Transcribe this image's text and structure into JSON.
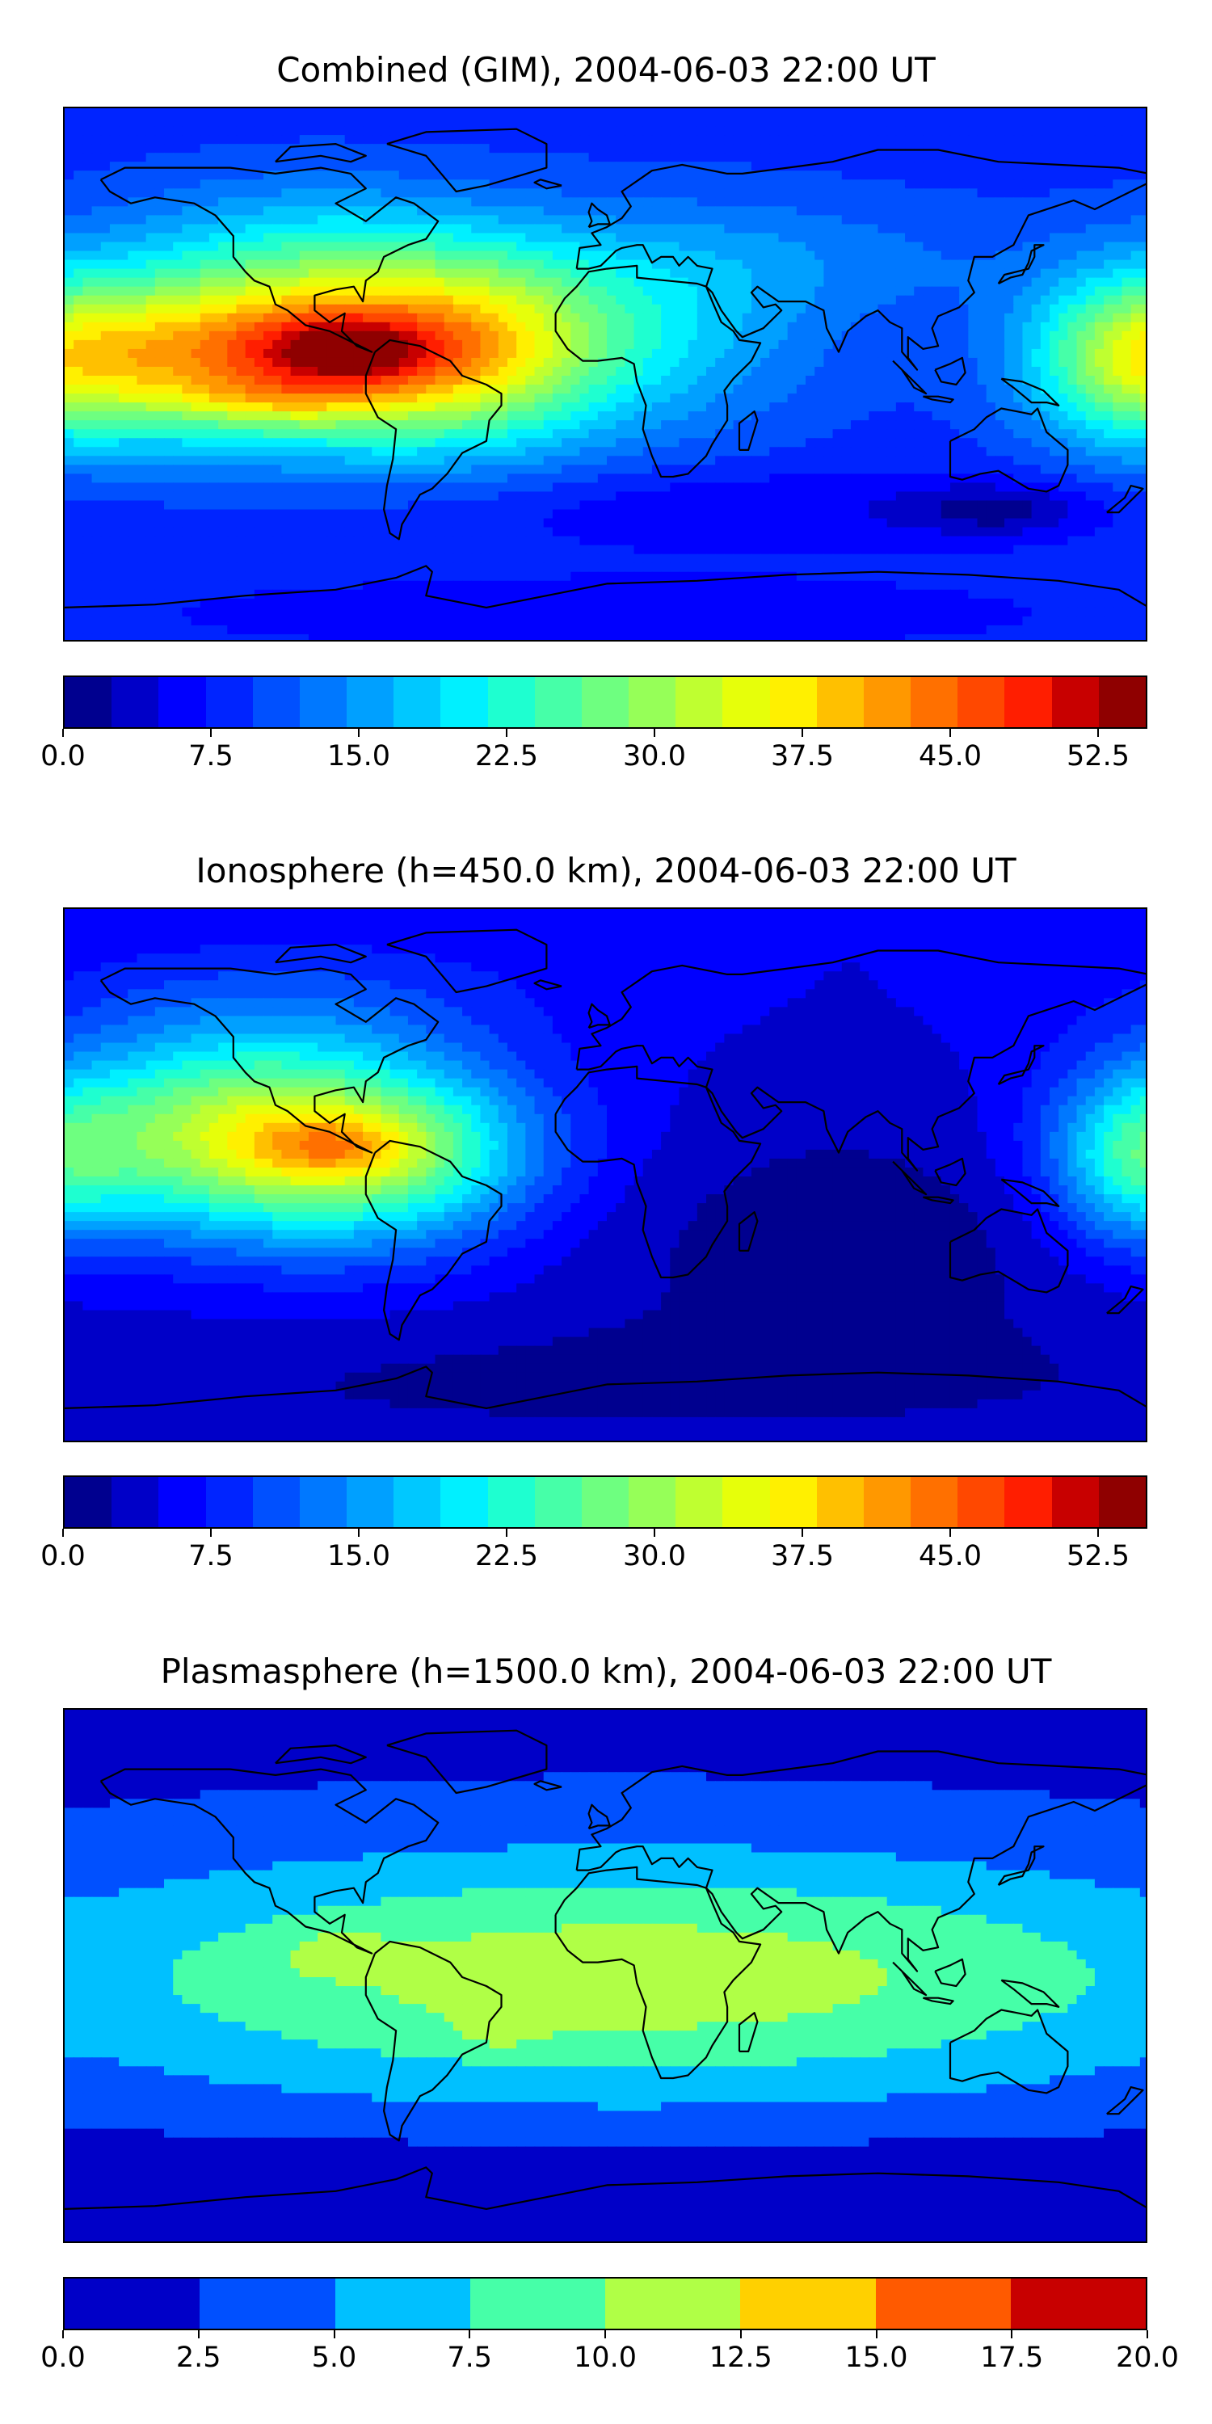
{
  "chart_data": [
    {
      "type": "heatmap",
      "title": "Combined (GIM), 2004-06-03 22:00 UT",
      "grid": false,
      "legend_placement": "bottom",
      "colorbar": {
        "levels": [
          0.0,
          2.5,
          5.0,
          7.5,
          10.0,
          12.5,
          15.0,
          17.5,
          20.0,
          22.5,
          25.0,
          27.5,
          30.0,
          32.5,
          35.0,
          37.5,
          40.0,
          42.5,
          45.0,
          47.5,
          50.0,
          52.5,
          55.0
        ],
        "tick_labels": [
          "0.0",
          "7.5",
          "15.0",
          "22.5",
          "30.0",
          "37.5",
          "45.0",
          "52.5"
        ],
        "tick_values": [
          0.0,
          7.5,
          15.0,
          22.5,
          30.0,
          37.5,
          45.0,
          52.5
        ],
        "range": [
          0,
          55
        ],
        "colors": [
          "#00008f",
          "#0000c8",
          "#0000ff",
          "#0024ff",
          "#0050ff",
          "#0078ff",
          "#00a0ff",
          "#00c8ff",
          "#00f0ff",
          "#1effd0",
          "#46ffa8",
          "#6eff80",
          "#96ff58",
          "#bfff30",
          "#e6ff0a",
          "#fff000",
          "#ffc000",
          "#ff9800",
          "#ff7000",
          "#ff4800",
          "#ff1e00",
          "#c80000",
          "#8f0000"
        ]
      },
      "field": {
        "background": 9,
        "blobs": [
          {
            "lon": -95,
            "lat": 10,
            "sx": 55,
            "sy": 22,
            "amp": 36
          },
          {
            "lon": -85,
            "lat": 8,
            "sx": 20,
            "sy": 8,
            "amp": 12
          },
          {
            "lon": -110,
            "lat": -8,
            "sx": 25,
            "sy": 6,
            "amp": 6
          },
          {
            "lon": -140,
            "lat": 5,
            "sx": 30,
            "sy": 14,
            "amp": 6
          },
          {
            "lon": -40,
            "lat": 10,
            "sx": 30,
            "sy": 25,
            "amp": 10
          },
          {
            "lon": 20,
            "lat": 15,
            "sx": 40,
            "sy": 25,
            "amp": 7
          },
          {
            "lon": 175,
            "lat": 5,
            "sx": 25,
            "sy": 20,
            "amp": 18
          },
          {
            "lon": 60,
            "lat": 40,
            "sx": 60,
            "sy": 15,
            "amp": 4
          },
          {
            "lon": -100,
            "lat": 50,
            "sx": 40,
            "sy": 15,
            "amp": 5
          },
          {
            "lon": 130,
            "lat": -45,
            "sx": 20,
            "sy": 6,
            "amp": -6
          },
          {
            "lon": 50,
            "lat": -45,
            "sx": 80,
            "sy": 10,
            "amp": -4
          },
          {
            "lon": 0,
            "lat": -80,
            "sx": 120,
            "sy": 10,
            "amp": -3
          }
        ]
      }
    },
    {
      "type": "heatmap",
      "title": "Ionosphere  (h=450.0 km), 2004-06-03 22:00 UT",
      "grid": false,
      "legend_placement": "bottom",
      "colorbar": {
        "levels": [
          0.0,
          2.5,
          5.0,
          7.5,
          10.0,
          12.5,
          15.0,
          17.5,
          20.0,
          22.5,
          25.0,
          27.5,
          30.0,
          32.5,
          35.0,
          37.5,
          40.0,
          42.5,
          45.0,
          47.5,
          50.0,
          52.5,
          55.0
        ],
        "tick_labels": [
          "0.0",
          "7.5",
          "15.0",
          "22.5",
          "30.0",
          "37.5",
          "45.0",
          "52.5"
        ],
        "tick_values": [
          0.0,
          7.5,
          15.0,
          22.5,
          30.0,
          37.5,
          45.0,
          52.5
        ],
        "range": [
          0,
          55
        ],
        "colors": [
          "#00008f",
          "#0000c8",
          "#0000ff",
          "#0024ff",
          "#0050ff",
          "#0078ff",
          "#00a0ff",
          "#00c8ff",
          "#00f0ff",
          "#1effd0",
          "#46ffa8",
          "#6eff80",
          "#96ff58",
          "#bfff30",
          "#e6ff0a",
          "#fff000",
          "#ffc000",
          "#ff9800",
          "#ff7000",
          "#ff4800",
          "#ff1e00",
          "#c80000",
          "#8f0000"
        ]
      },
      "field": {
        "background": 5,
        "blobs": [
          {
            "lon": -105,
            "lat": 10,
            "sx": 50,
            "sy": 22,
            "amp": 30
          },
          {
            "lon": -90,
            "lat": 10,
            "sx": 18,
            "sy": 7,
            "amp": 8
          },
          {
            "lon": -130,
            "lat": 30,
            "sx": 40,
            "sy": 20,
            "amp": 6
          },
          {
            "lon": -60,
            "lat": 5,
            "sx": 25,
            "sy": 20,
            "amp": 5
          },
          {
            "lon": 175,
            "lat": 5,
            "sx": 20,
            "sy": 20,
            "amp": 14
          },
          {
            "lon": -100,
            "lat": 60,
            "sx": 60,
            "sy": 15,
            "amp": 4
          },
          {
            "lon": 80,
            "lat": -20,
            "sx": 70,
            "sy": 30,
            "amp": -4
          },
          {
            "lon": 0,
            "lat": -70,
            "sx": 150,
            "sy": 15,
            "amp": -3
          }
        ]
      }
    },
    {
      "type": "heatmap",
      "title": "Plasmasphere (h=1500.0 km), 2004-06-03 22:00 UT",
      "grid": false,
      "legend_placement": "bottom",
      "colorbar": {
        "levels": [
          0.0,
          2.5,
          5.0,
          7.5,
          10.0,
          12.5,
          15.0,
          17.5,
          20.0
        ],
        "tick_labels": [
          "0.0",
          "2.5",
          "5.0",
          "7.5",
          "10.0",
          "12.5",
          "15.0",
          "17.5",
          "20.0"
        ],
        "tick_values": [
          0.0,
          2.5,
          5.0,
          7.5,
          10.0,
          12.5,
          15.0,
          17.5,
          20.0
        ],
        "range": [
          0,
          20
        ],
        "colors": [
          "#0000c8",
          "#0050ff",
          "#00c0ff",
          "#46ffa8",
          "#b0ff46",
          "#ffd000",
          "#ff5a00",
          "#c80000"
        ]
      },
      "field": {
        "background": 1.5,
        "blobs": [
          {
            "lon": 10,
            "lat": 0,
            "sx": 140,
            "sy": 28,
            "amp": 7.5
          },
          {
            "lon": -90,
            "lat": 8,
            "sx": 12,
            "sy": 5,
            "amp": 2.8
          },
          {
            "lon": -35,
            "lat": -18,
            "sx": 10,
            "sy": 4,
            "amp": 2.5
          },
          {
            "lon": 0,
            "lat": 0,
            "sx": 200,
            "sy": 40,
            "amp": 2.5
          },
          {
            "lon": 0,
            "lat": -60,
            "sx": 200,
            "sy": 8,
            "amp": -1
          }
        ]
      }
    }
  ]
}
